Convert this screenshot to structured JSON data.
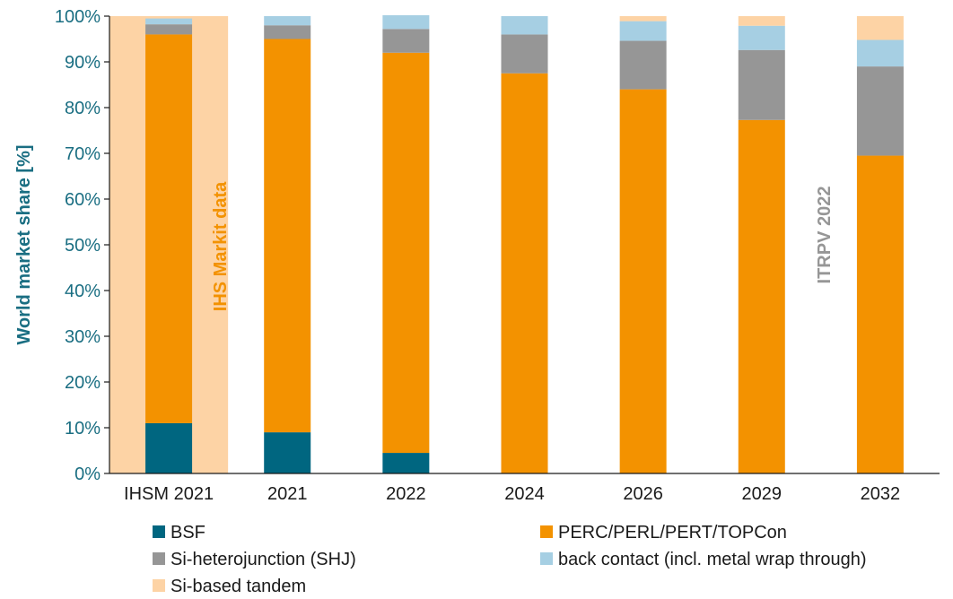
{
  "chart_data": {
    "type": "bar",
    "stacked": true,
    "ylabel": "World market share [%]",
    "ylim": [
      0,
      100
    ],
    "yticks": [
      "0%",
      "10%",
      "20%",
      "30%",
      "40%",
      "50%",
      "60%",
      "70%",
      "80%",
      "90%",
      "100%"
    ],
    "categories": [
      "IHSM 2021",
      "2021",
      "2022",
      "2024",
      "2026",
      "2029",
      "2032"
    ],
    "series": [
      {
        "name": "BSF",
        "color": "#006680",
        "values": [
          11,
          9,
          4.5,
          0,
          0,
          0,
          0
        ]
      },
      {
        "name": "PERC/PERL/PERT/TOPCon",
        "color": "#f39200",
        "values": [
          85,
          86,
          87.5,
          87.5,
          84,
          77.3,
          69.5
        ]
      },
      {
        "name": "Si-heterojunction (SHJ)",
        "color": "#969696",
        "values": [
          2.2,
          3,
          5.2,
          8.5,
          10.6,
          15.3,
          19.5
        ]
      },
      {
        "name": "back contact (incl. metal wrap through)",
        "color": "#a6cfe3",
        "values": [
          1.3,
          2,
          3,
          4,
          4.3,
          5.3,
          5.8
        ]
      },
      {
        "name": "Si-based tandem",
        "color": "#fdd3a5",
        "values": [
          0.5,
          0,
          0,
          0,
          1.1,
          2.1,
          5.2
        ]
      }
    ],
    "highlight_band": {
      "category": "IHSM 2021",
      "color": "#fdd3a5"
    },
    "annotations": [
      {
        "text": "IHS Markit data",
        "color": "#f39200"
      },
      {
        "text": "ITRPV 2022",
        "color": "#969696"
      }
    ],
    "grid": false,
    "legend_position": "bottom"
  }
}
